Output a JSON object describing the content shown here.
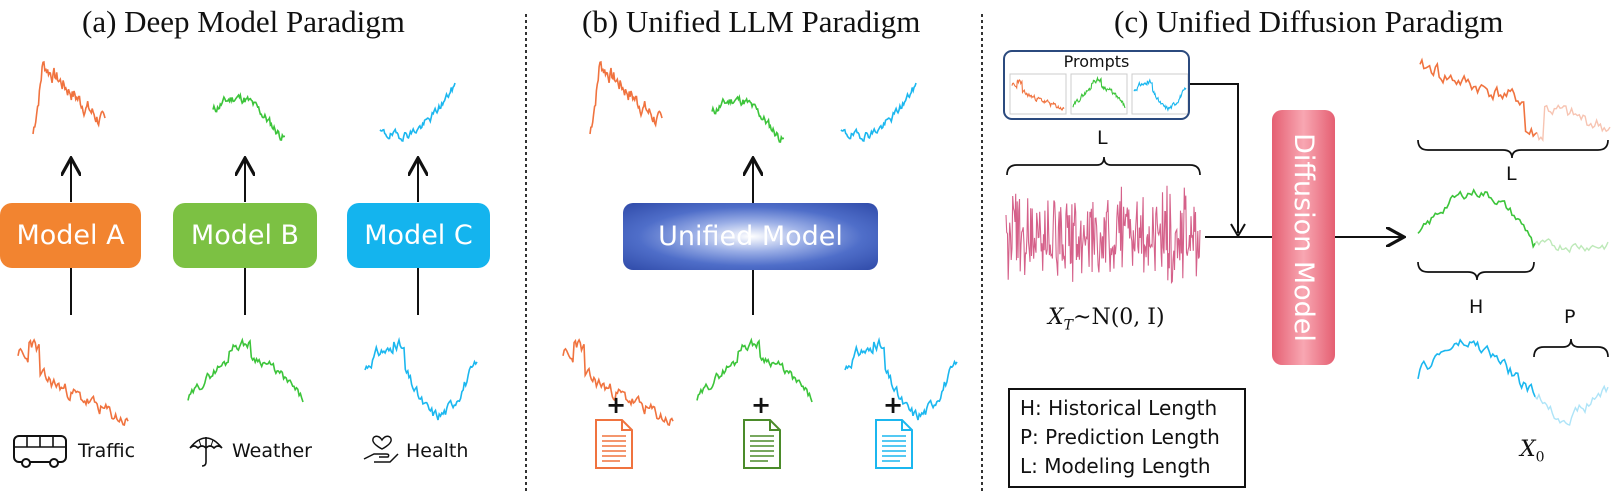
{
  "panels": {
    "a": {
      "title": "(a)  Deep Model Paradigm"
    },
    "b": {
      "title": "(b) Unified LLM Paradigm"
    },
    "c": {
      "title": "(c) Unified Diffusion Paradigm"
    }
  },
  "models": {
    "a_label": "Model A",
    "b_label": "Model B",
    "c_label": "Model C",
    "unified_label": "Unified Model",
    "diffusion_label": "Diffusion Model"
  },
  "domains": {
    "traffic": "Traffic",
    "weather": "Weather",
    "health": "Health"
  },
  "plus_sign": "+",
  "prompts_label": "Prompts",
  "noise_formula": "Xₜ~N(0, I)",
  "noise_formula_parts": {
    "base": "X",
    "sub": "T",
    "rest": "~N(0, I)"
  },
  "output_label": {
    "base": "X",
    "sub": "0"
  },
  "braces": {
    "l_top": "L",
    "l_right": "L",
    "h": "H",
    "p": "P"
  },
  "legend": [
    "H: Historical  Length",
    "P: Prediction Length",
    "L: Modeling Length"
  ],
  "colors": {
    "orange": "#f0733f",
    "green": "#3cc43a",
    "blue": "#1bb7ef",
    "model_a": "#f28430",
    "model_b": "#7cc143",
    "model_c": "#14b4ee",
    "unified": "#3653b2",
    "diffusion": "#e55f72",
    "noise": "#d5618a"
  }
}
